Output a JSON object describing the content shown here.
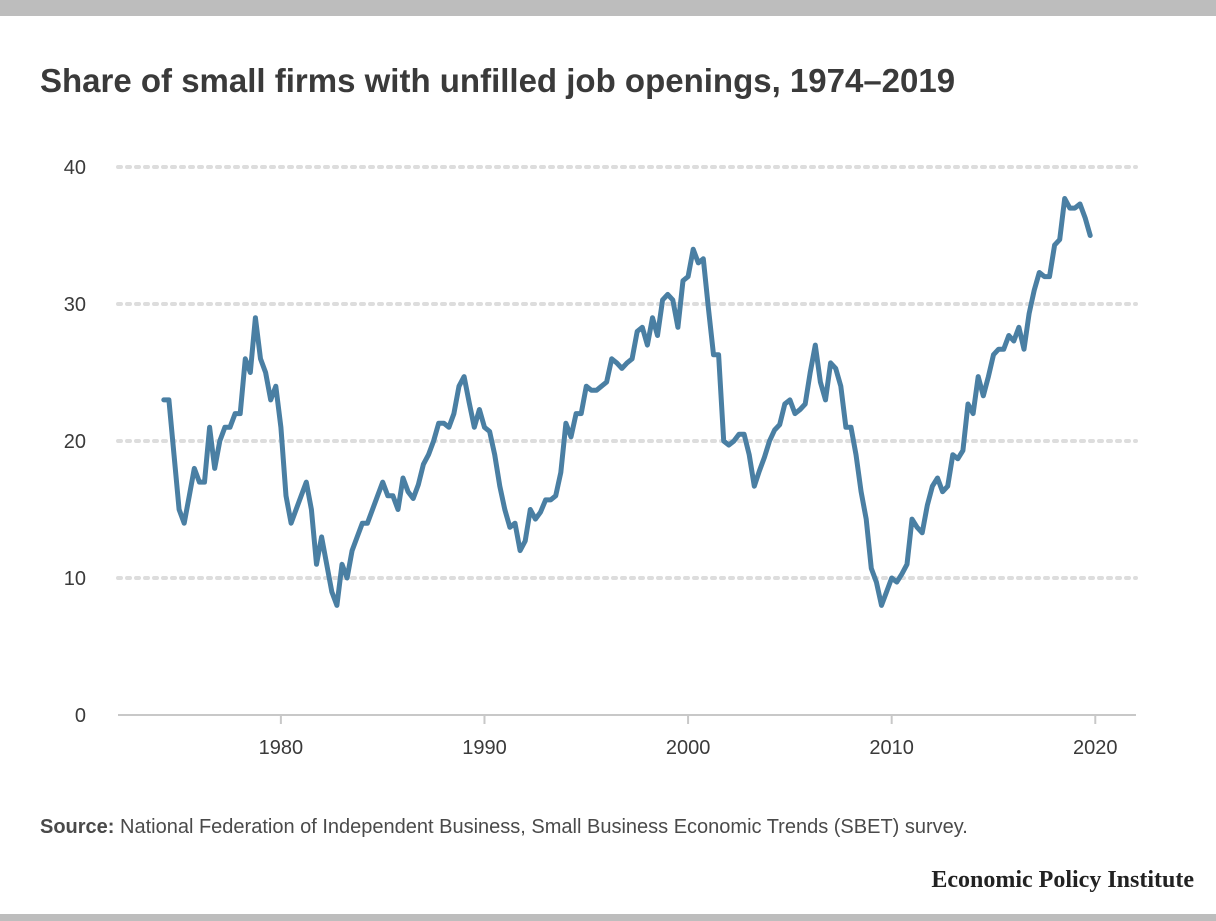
{
  "source": {
    "label": "Source:",
    "text": "National Federation of Independent Business, Small Business Economic Trends (SBET) survey."
  },
  "brand": "Economic Policy Institute",
  "colors": {
    "line": "#4a7fa3",
    "grid": "#dddddd",
    "axis": "#c8c8c8",
    "text": "#3a3a3a",
    "frame_bars": "#bdbdbd"
  },
  "chart_data": {
    "type": "line",
    "title": "Share of small firms with unfilled job openings, 1974–2019",
    "xlabel": "",
    "ylabel": "",
    "xlim": [
      1972,
      2022
    ],
    "ylim": [
      0,
      40
    ],
    "xticks": [
      1980,
      1990,
      2000,
      2010,
      2020
    ],
    "yticks": [
      0,
      10,
      20,
      30,
      40
    ],
    "grid": "horizontal dotted",
    "series": [
      {
        "x": [
          1974.25,
          1974.5,
          1974.75,
          1975.0,
          1975.25,
          1975.5,
          1975.75,
          1976.0,
          1976.25,
          1976.5,
          1976.75,
          1977.0,
          1977.25,
          1977.5,
          1977.75,
          1978.0,
          1978.25,
          1978.5,
          1978.75,
          1979.0,
          1979.25,
          1979.5,
          1979.75,
          1980.0,
          1980.25,
          1980.5,
          1980.75,
          1981.0,
          1981.25,
          1981.5,
          1981.75,
          1982.0,
          1982.25,
          1982.5,
          1982.75,
          1983.0,
          1983.25,
          1983.5,
          1983.75,
          1984.0,
          1984.25,
          1984.5,
          1984.75,
          1985.0,
          1985.25,
          1985.5,
          1985.75,
          1986.0,
          1986.25,
          1986.5,
          1986.75,
          1987.0,
          1987.25,
          1987.5,
          1987.75,
          1988.0,
          1988.25,
          1988.5,
          1988.75,
          1989.0,
          1989.25,
          1989.5,
          1989.75,
          1990.0,
          1990.25,
          1990.5,
          1990.75,
          1991.0,
          1991.25,
          1991.5,
          1991.75,
          1992.0,
          1992.25,
          1992.5,
          1992.75,
          1993.0,
          1993.25,
          1993.5,
          1993.75,
          1994.0,
          1994.25,
          1994.5,
          1994.75,
          1995.0,
          1995.25,
          1995.5,
          1995.75,
          1996.0,
          1996.25,
          1996.5,
          1996.75,
          1997.0,
          1997.25,
          1997.5,
          1997.75,
          1998.0,
          1998.25,
          1998.5,
          1998.75,
          1999.0,
          1999.25,
          1999.5,
          1999.75,
          2000.0,
          2000.25,
          2000.5,
          2000.75,
          2001.0,
          2001.25,
          2001.5,
          2001.75,
          2002.0,
          2002.25,
          2002.5,
          2002.75,
          2003.0,
          2003.25,
          2003.5,
          2003.75,
          2004.0,
          2004.25,
          2004.5,
          2004.75,
          2005.0,
          2005.25,
          2005.5,
          2005.75,
          2006.0,
          2006.25,
          2006.5,
          2006.75,
          2007.0,
          2007.25,
          2007.5,
          2007.75,
          2008.0,
          2008.25,
          2008.5,
          2008.75,
          2009.0,
          2009.25,
          2009.5,
          2009.75,
          2010.0,
          2010.25,
          2010.5,
          2010.75,
          2011.0,
          2011.25,
          2011.5,
          2011.75,
          2012.0,
          2012.25,
          2012.5,
          2012.75,
          2013.0,
          2013.25,
          2013.5,
          2013.75,
          2014.0,
          2014.25,
          2014.5,
          2014.75,
          2015.0,
          2015.25,
          2015.5,
          2015.75,
          2016.0,
          2016.25,
          2016.5,
          2016.75,
          2017.0,
          2017.25,
          2017.5,
          2017.75,
          2018.0,
          2018.25,
          2018.5,
          2018.75,
          2019.0,
          2019.25,
          2019.5,
          2019.75
        ],
        "values": [
          23,
          23,
          19,
          15,
          14,
          16,
          18,
          17,
          17,
          21,
          18,
          20,
          21,
          21,
          22,
          22,
          26,
          25,
          29,
          26,
          25,
          23,
          24,
          21,
          16,
          14,
          15,
          16,
          17,
          15,
          11,
          13,
          11,
          9,
          8,
          11,
          10,
          12,
          13,
          14,
          14,
          15,
          16,
          17,
          16,
          16,
          15,
          17.3,
          16.3,
          15.8,
          16.8,
          18.3,
          19,
          20,
          21.3,
          21.3,
          21,
          22,
          24,
          24.7,
          22.8,
          21,
          22.3,
          21,
          20.7,
          19,
          16.7,
          15,
          13.7,
          14,
          12,
          12.7,
          15,
          14.3,
          14.8,
          15.7,
          15.7,
          16,
          17.7,
          21.3,
          20.3,
          22,
          22,
          24,
          23.7,
          23.7,
          24,
          24.3,
          26,
          25.7,
          25.3,
          25.7,
          26,
          28,
          28.3,
          27,
          29,
          27.7,
          30.3,
          30.7,
          30.3,
          28.3,
          31.7,
          32,
          34,
          33,
          33.3,
          29.7,
          26.3,
          26.3,
          20,
          19.7,
          20,
          20.5,
          20.5,
          19,
          16.7,
          17.8,
          18.8,
          20,
          20.8,
          21.2,
          22.7,
          23,
          22,
          22.3,
          22.7,
          25,
          27,
          24.3,
          23,
          25.7,
          25.3,
          24,
          21,
          21,
          19,
          16.3,
          14.3,
          10.7,
          9.7,
          8,
          9,
          10,
          9.7,
          10.3,
          11,
          14.3,
          13.7,
          13.3,
          15.3,
          16.7,
          17.3,
          16.3,
          16.7,
          19,
          18.7,
          19.3,
          22.7,
          22,
          24.7,
          23.3,
          24.7,
          26.3,
          26.7,
          26.7,
          27.7,
          27.3,
          28.3,
          26.7,
          29.3,
          31,
          32.3,
          32,
          32,
          34.3,
          34.7,
          37.7,
          37,
          37,
          37.3,
          36.3,
          35
        ]
      }
    ]
  }
}
